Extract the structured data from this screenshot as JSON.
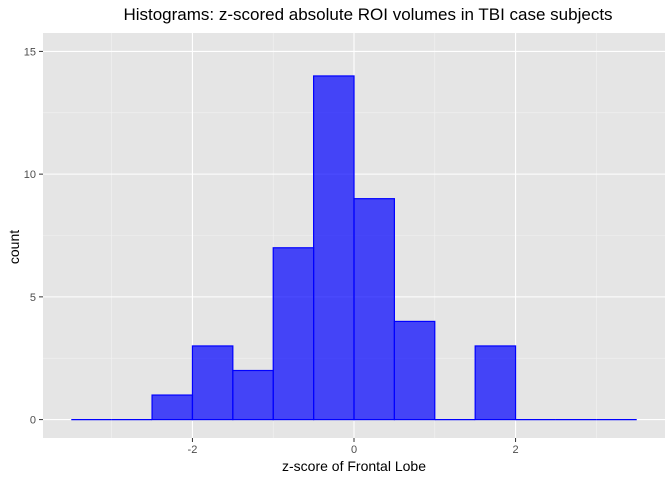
{
  "chart_data": {
    "type": "bar",
    "title": "Histograms: z-scored absolute ROI volumes in TBI case subjects",
    "xlabel": "z-score of Frontal Lobe",
    "ylabel": "count",
    "xlim": [
      -3.5,
      3.5
    ],
    "ylim": [
      0,
      15
    ],
    "bin_width": 0.5,
    "bins": [
      {
        "x0": -3.5,
        "x1": -3.0,
        "count": 0
      },
      {
        "x0": -3.0,
        "x1": -2.5,
        "count": 0
      },
      {
        "x0": -2.5,
        "x1": -2.0,
        "count": 1
      },
      {
        "x0": -2.0,
        "x1": -1.5,
        "count": 3
      },
      {
        "x0": -1.5,
        "x1": -1.0,
        "count": 2
      },
      {
        "x0": -1.0,
        "x1": -0.5,
        "count": 7
      },
      {
        "x0": -0.5,
        "x1": 0.0,
        "count": 14
      },
      {
        "x0": 0.0,
        "x1": 0.5,
        "count": 9
      },
      {
        "x0": 0.5,
        "x1": 1.0,
        "count": 4
      },
      {
        "x0": 1.0,
        "x1": 1.5,
        "count": 0
      },
      {
        "x0": 1.5,
        "x1": 2.0,
        "count": 3
      },
      {
        "x0": 2.0,
        "x1": 2.5,
        "count": 0
      },
      {
        "x0": 2.5,
        "x1": 3.0,
        "count": 0
      },
      {
        "x0": 3.0,
        "x1": 3.5,
        "count": 0
      }
    ],
    "x_ticks": [
      -2,
      0,
      2
    ],
    "x_tick_labels": [
      "-2",
      "0",
      "2"
    ],
    "y_ticks": [
      0,
      5,
      10,
      15
    ],
    "y_tick_labels": [
      "0",
      "5",
      "10",
      "15"
    ],
    "grid": true,
    "colors": {
      "panel_background": "#e5e5e5",
      "grid_major": "#ffffff",
      "grid_minor": "#f2f2f2",
      "bar_fill": "#0000ff",
      "bar_fill_opacity": 0.7,
      "bar_outline": "#0000ff",
      "tick_label": "#4d4d4d",
      "tick_mark": "#333333"
    }
  }
}
